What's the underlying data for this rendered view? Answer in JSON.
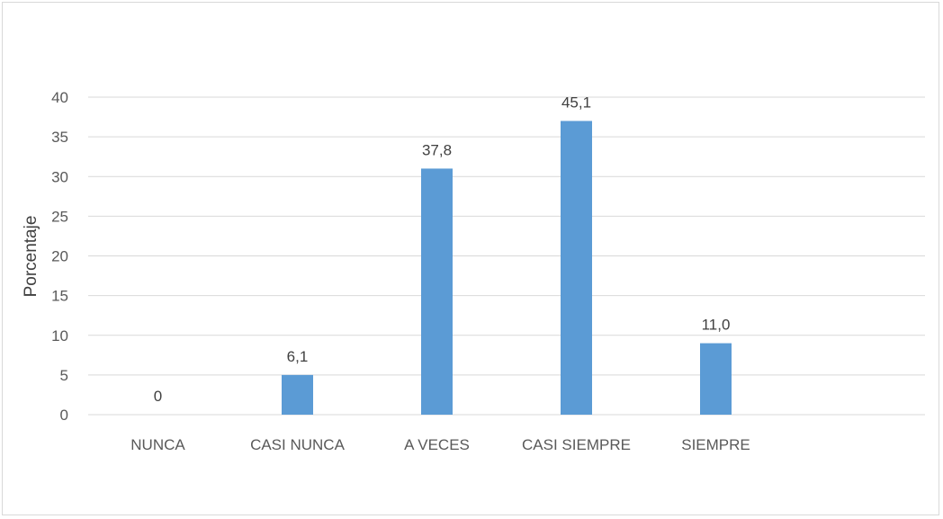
{
  "chart_data": {
    "type": "bar",
    "categories": [
      "NUNCA",
      "CASI NUNCA",
      "A VECES",
      "CASI SIEMPRE",
      "SIEMPRE"
    ],
    "values": [
      0,
      5,
      31,
      37,
      9
    ],
    "data_labels": [
      "0",
      "6,1",
      "37,8",
      "45,1",
      "11,0"
    ],
    "ylabel": "Porcentaje",
    "xlabel": "",
    "title": "",
    "ylim": [
      0,
      40
    ],
    "yticks": [
      0,
      5,
      10,
      15,
      20,
      25,
      30,
      35,
      40
    ],
    "grid": true,
    "legend": "none",
    "bar_color": "#5b9bd5",
    "grid_color": "#d9d9d9"
  }
}
